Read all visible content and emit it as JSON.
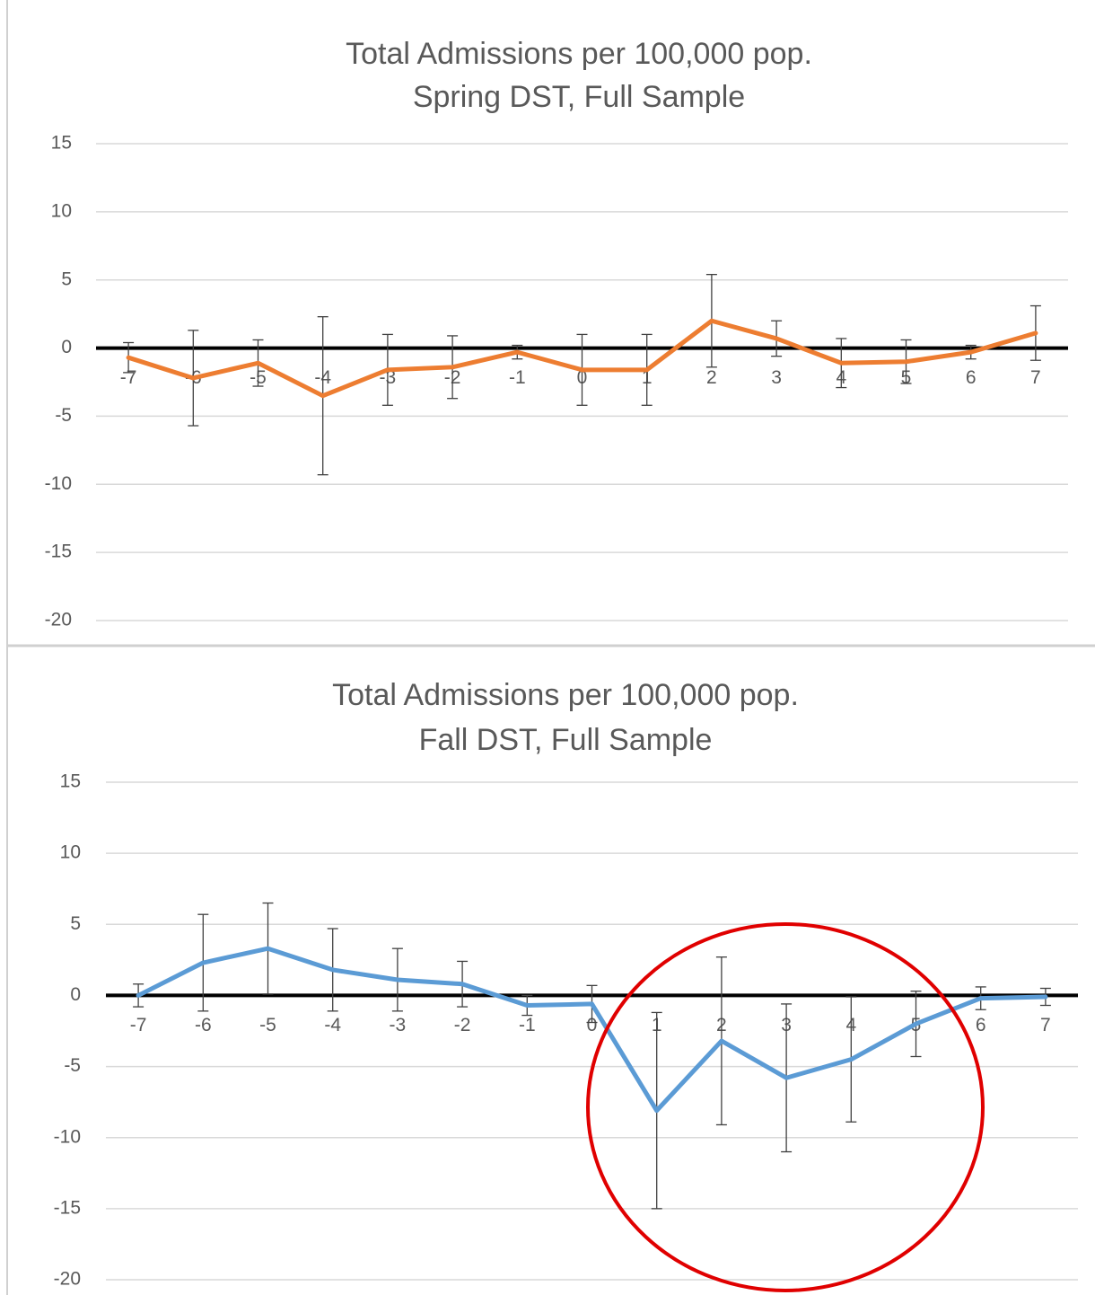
{
  "chart_data": [
    {
      "type": "line",
      "title": "Total Admissions per 100,000 pop.",
      "subtitle": "Spring DST, Full Sample",
      "x": [
        -7,
        -6,
        -5,
        -4,
        -3,
        -2,
        -1,
        0,
        1,
        2,
        3,
        4,
        5,
        6,
        7
      ],
      "values": [
        -0.7,
        -2.2,
        -1.1,
        -3.5,
        -1.6,
        -1.4,
        -0.3,
        -1.6,
        -1.6,
        2.0,
        0.7,
        -1.1,
        -1.0,
        -0.3,
        1.1
      ],
      "errors": [
        1.1,
        3.5,
        1.7,
        5.8,
        2.6,
        2.3,
        0.5,
        2.6,
        2.6,
        3.4,
        1.3,
        1.8,
        1.6,
        0.5,
        2.0
      ],
      "color": "#ed7d31",
      "xlim": [
        -7.5,
        7.5
      ],
      "ylim": [
        -20,
        15
      ],
      "yticks": [
        -20,
        -15,
        -10,
        -5,
        0,
        5,
        10,
        15
      ],
      "grid": true
    },
    {
      "type": "line",
      "title": "Total Admissions per 100,000 pop.",
      "subtitle": "Fall DST, Full Sample",
      "x": [
        -7,
        -6,
        -5,
        -4,
        -3,
        -2,
        -1,
        0,
        1,
        2,
        3,
        4,
        5,
        6,
        7
      ],
      "values": [
        0.0,
        2.3,
        3.3,
        1.8,
        1.1,
        0.8,
        -0.7,
        -0.6,
        -8.1,
        -3.2,
        -5.8,
        -4.5,
        -2.0,
        -0.2,
        -0.1
      ],
      "errors": [
        0.8,
        3.4,
        3.2,
        2.9,
        2.2,
        1.6,
        0.7,
        1.3,
        6.9,
        5.9,
        5.2,
        4.4,
        2.3,
        0.8,
        0.6
      ],
      "color": "#5b9bd5",
      "xlim": [
        -7.5,
        7.5
      ],
      "ylim": [
        -20,
        15
      ],
      "yticks": [
        -20,
        -15,
        -10,
        -5,
        0,
        5,
        10,
        15
      ],
      "grid": true
    }
  ]
}
